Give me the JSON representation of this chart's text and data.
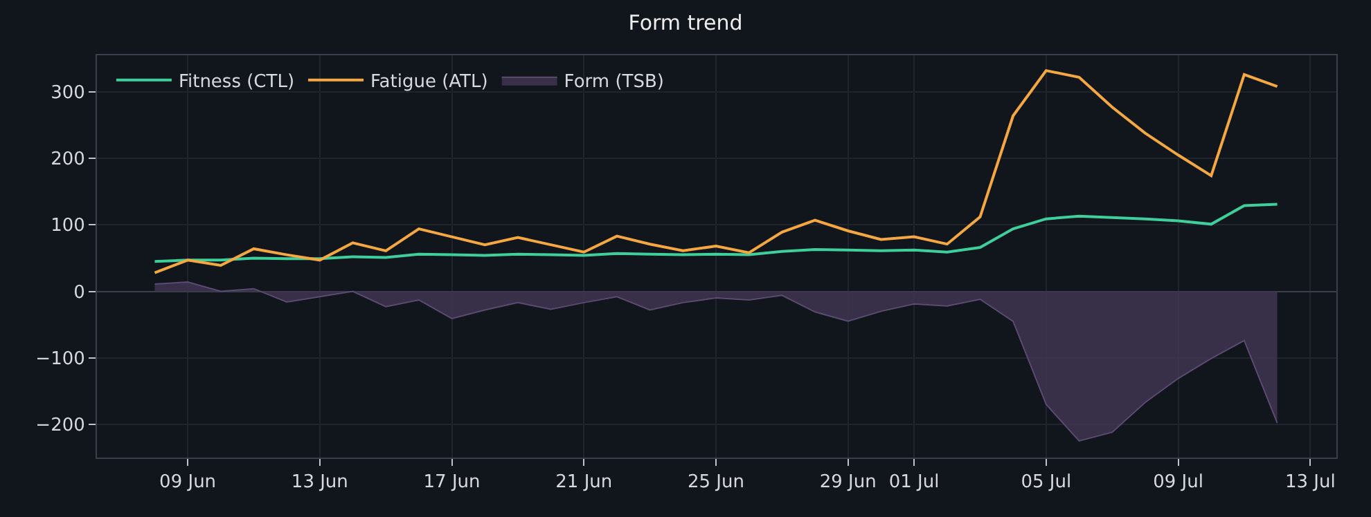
{
  "chart_data": {
    "type": "line",
    "title": "Form trend",
    "x": [
      "--06-08",
      "--06-09",
      "--06-10",
      "--06-11",
      "--06-12",
      "--06-13",
      "--06-14",
      "--06-15",
      "--06-16",
      "--06-17",
      "--06-18",
      "--06-19",
      "--06-20",
      "--06-21",
      "--06-22",
      "--06-23",
      "--06-24",
      "--06-25",
      "--06-26",
      "--06-27",
      "--06-28",
      "--06-29",
      "--06-30",
      "--07-01",
      "--07-02",
      "--07-03",
      "--07-04",
      "--07-05",
      "--07-06",
      "--07-07",
      "--07-08",
      "--07-09",
      "--07-10",
      "--07-11",
      "--07-12"
    ],
    "series": [
      {
        "name": "Fitness (CTL)",
        "color": "#3ecf9a",
        "values": [
          45,
          47,
          47,
          50,
          49,
          49,
          52,
          51,
          56,
          55,
          54,
          56,
          55,
          54,
          57,
          56,
          55,
          56,
          55,
          60,
          63,
          62,
          61,
          62,
          59,
          66,
          94,
          109,
          113,
          111,
          109,
          106,
          101,
          129,
          131
        ]
      },
      {
        "name": "Fatigue (ATL)",
        "color": "#f5a742",
        "values": [
          28,
          47,
          39,
          64,
          55,
          47,
          73,
          61,
          94,
          82,
          70,
          81,
          70,
          59,
          83,
          71,
          61,
          68,
          58,
          89,
          107,
          91,
          78,
          82,
          71,
          112,
          264,
          332,
          322,
          277,
          238,
          205,
          174,
          326,
          308
        ]
      },
      {
        "name": "Form (TSB)",
        "type": "area",
        "color": "#3f3550",
        "values": [
          11,
          14,
          0,
          4,
          -16,
          -8,
          0,
          -23,
          -13,
          -41,
          -28,
          -17,
          -27,
          -17,
          -8,
          -28,
          -17,
          -10,
          -13,
          -6,
          -31,
          -45,
          -30,
          -19,
          -22,
          -12,
          -45,
          -170,
          -225,
          -212,
          -167,
          -131,
          -101,
          -74,
          -198
        ]
      }
    ],
    "xlim": [
      "--06-06T06:00",
      "--07-13T19:00"
    ],
    "xticks": [
      {
        "value": "--06-09",
        "label": "09 Jun"
      },
      {
        "value": "--06-13",
        "label": "13 Jun"
      },
      {
        "value": "--06-17",
        "label": "17 Jun"
      },
      {
        "value": "--06-21",
        "label": "21 Jun"
      },
      {
        "value": "--06-25",
        "label": "25 Jun"
      },
      {
        "value": "--06-29",
        "label": "29 Jun"
      },
      {
        "value": "--07-01",
        "label": "01 Jul"
      },
      {
        "value": "--07-05",
        "label": "05 Jul"
      },
      {
        "value": "--07-09",
        "label": "09 Jul"
      },
      {
        "value": "--07-13",
        "label": "13 Jul"
      }
    ],
    "ylim": [
      -250,
      355
    ],
    "yticks": [
      {
        "value": -200,
        "label": "−200"
      },
      {
        "value": -100,
        "label": "−100"
      },
      0,
      100,
      200,
      300
    ],
    "grid": true,
    "legend": "top left"
  }
}
